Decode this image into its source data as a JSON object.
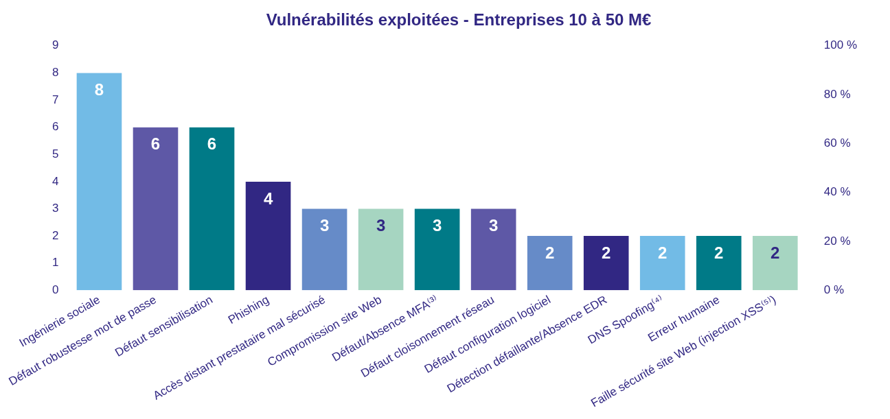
{
  "chart_data": {
    "type": "bar",
    "title": "Vulnérabilités exploitées - Entreprises 10 à 50 M€",
    "categories": [
      "Ingénierie sociale",
      "Défaut robustesse mot de passe",
      "Défaut sensibilisation",
      "Phishing",
      "Accès distant prestataire mal sécurisé",
      "Compromission site Web",
      "Défaut/Absence MFA⁽³⁾",
      "Défaut cloisonnement réseau",
      "Défaut configuration logiciel",
      "Détection défaillante/Absence EDR",
      "DNS Spoofing⁽⁴⁾",
      "Erreur humaine",
      "Faille sécurité site Web (injection XSS⁽⁵⁾)"
    ],
    "values": [
      8,
      6,
      6,
      4,
      3,
      3,
      3,
      3,
      2,
      2,
      2,
      2,
      2
    ],
    "colors": [
      "#72bbe6",
      "#5e58a6",
      "#007a87",
      "#312783",
      "#668bc8",
      "#a6d5c1",
      "#007a87",
      "#5e58a6",
      "#668bc8",
      "#312783",
      "#72bbe6",
      "#007a87",
      "#a6d5c1"
    ],
    "ylim": [
      0,
      9
    ],
    "yticks": [
      0,
      1,
      2,
      3,
      4,
      5,
      6,
      7,
      8,
      9
    ],
    "y2lim": [
      0,
      100
    ],
    "y2ticks": [
      {
        "value": 0,
        "label": "0 %"
      },
      {
        "value": 20,
        "label": "20 %"
      },
      {
        "value": 40,
        "label": "40 %"
      },
      {
        "value": 60,
        "label": "60 %"
      },
      {
        "value": 80,
        "label": "80 %"
      },
      {
        "value": 100,
        "label": "100 %"
      }
    ],
    "data_labels": true,
    "grid": false,
    "legend": false
  }
}
